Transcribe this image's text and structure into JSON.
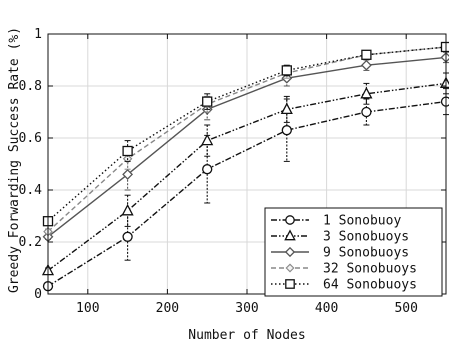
{
  "chart_data": {
    "type": "line",
    "title": "",
    "xlabel": "Number of Nodes",
    "ylabel": "Greedy Forwarding Success Rate (%)",
    "xlim": [
      50,
      550
    ],
    "ylim": [
      0,
      1
    ],
    "xticks": [
      100,
      200,
      300,
      400,
      500
    ],
    "yticks": [
      0,
      0.2,
      0.4,
      0.6,
      0.8,
      1
    ],
    "ytick_labels": [
      "0",
      "0.2",
      "0.4",
      "0.6",
      "0.8",
      "1"
    ],
    "grid": true,
    "legend_position": "bottom-right",
    "x": [
      50,
      150,
      250,
      350,
      450,
      550
    ],
    "series": [
      {
        "name": "1 Sonobuoy",
        "marker": "circle",
        "dash": "dashdot",
        "color": "#111111",
        "values": [
          0.03,
          0.22,
          0.48,
          0.63,
          0.7,
          0.74
        ],
        "errors": [
          0.01,
          0.09,
          0.13,
          0.12,
          0.05,
          0.05
        ]
      },
      {
        "name": "3 Sonobuoys",
        "marker": "triangle",
        "dash": "dashdotdot",
        "color": "#111111",
        "values": [
          0.09,
          0.32,
          0.59,
          0.71,
          0.77,
          0.81
        ],
        "errors": [
          0.01,
          0.06,
          0.06,
          0.05,
          0.04,
          0.04
        ]
      },
      {
        "name": "9 Sonobuoys",
        "marker": "diamond",
        "dash": "solid",
        "color": "#555555",
        "values": [
          0.22,
          0.46,
          0.71,
          0.83,
          0.88,
          0.91
        ],
        "errors": [
          0.01,
          0.06,
          0.04,
          0.03,
          0.02,
          0.02
        ]
      },
      {
        "name": "32 Sonobuoys",
        "marker": "diamond-small",
        "dash": "dashed",
        "color": "#888888",
        "values": [
          0.24,
          0.52,
          0.73,
          0.85,
          0.92,
          0.95
        ],
        "errors": [
          0.01,
          0.04,
          0.03,
          0.02,
          0.01,
          0.01
        ]
      },
      {
        "name": "64 Sonobuoys",
        "marker": "square",
        "dash": "dotted",
        "color": "#111111",
        "values": [
          0.28,
          0.55,
          0.74,
          0.86,
          0.92,
          0.95
        ],
        "errors": [
          0.01,
          0.04,
          0.03,
          0.02,
          0.01,
          0.01
        ]
      }
    ]
  }
}
